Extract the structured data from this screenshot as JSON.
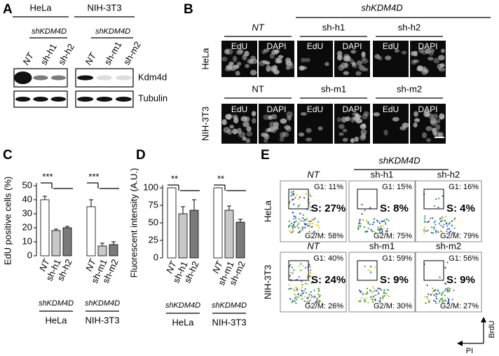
{
  "panel_labels": [
    "A",
    "B",
    "C",
    "D",
    "E"
  ],
  "blot": {
    "cell_lines": [
      {
        "name": "HeLa",
        "treatment": "shKDM4D",
        "lanes": [
          "NT",
          "sh-h1",
          "sh-h2"
        ]
      },
      {
        "name": "NIH-3T3",
        "treatment": "shKDM4D",
        "lanes": [
          "NT",
          "sh-m1",
          "sh-m2"
        ]
      }
    ],
    "proteins": [
      "Kdm4d",
      "Tubulin"
    ]
  },
  "imaging": {
    "treatment": "shKDM4D",
    "channels": [
      "EdU",
      "DAPI"
    ],
    "rows": [
      {
        "cell_line": "HeLa",
        "conditions": [
          "NT",
          "sh-h1",
          "sh-h2"
        ]
      },
      {
        "cell_line": "NIH-3T3",
        "conditions": [
          "NT",
          "sh-m1",
          "sh-m2"
        ]
      }
    ]
  },
  "chart_data": [
    {
      "type": "bar",
      "y_label": "EdU positive cells (%)",
      "categories": [
        "NT",
        "sh-h1",
        "sh-h2",
        "NT",
        "sh-m1",
        "sh-m2"
      ],
      "values": [
        40,
        18,
        20,
        35,
        7,
        8
      ],
      "errors": [
        2.5,
        1,
        1,
        5,
        2,
        2
      ],
      "colors": [
        "#ffffff",
        "#c8c8c8",
        "#7a7a7a",
        "#ffffff",
        "#c8c8c8",
        "#7a7a7a"
      ],
      "ylim": [
        0,
        50
      ],
      "yticks": [
        0,
        10,
        20,
        30,
        40,
        50
      ],
      "groups": [
        {
          "subtitle": "shKDM4D",
          "name": "HeLa",
          "significance": "***"
        },
        {
          "subtitle": "shKDM4D",
          "name": "NIH-3T3",
          "significance": "***"
        }
      ]
    },
    {
      "type": "bar",
      "y_label": "Fluorescent intensity (A.U.)",
      "categories": [
        "NT",
        "sh-h1",
        "sh-h2",
        "NT",
        "sh-m1",
        "sh-m2"
      ],
      "values": [
        100,
        63,
        68,
        100,
        68,
        51
      ],
      "errors": [
        0,
        10,
        15,
        0,
        6,
        4
      ],
      "colors": [
        "#ffffff",
        "#c8c8c8",
        "#7a7a7a",
        "#ffffff",
        "#c8c8c8",
        "#7a7a7a"
      ],
      "ylim": [
        0,
        100
      ],
      "yticks": [
        0,
        25,
        50,
        75,
        100
      ],
      "groups": [
        {
          "subtitle": "shKDM4D",
          "name": "HeLa",
          "significance": "**"
        },
        {
          "subtitle": "shKDM4D",
          "name": "NIH-3T3",
          "significance": "**"
        }
      ]
    }
  ],
  "flow": {
    "treatment": "shKDM4D",
    "y_axis": "BrdU",
    "x_axis": "PI",
    "rows": [
      {
        "cell_line": "HeLa",
        "conditions": [
          {
            "name": "NT",
            "g1": "G1: 11%",
            "s": "S: 27%",
            "g2m": "G2/M: 58%"
          },
          {
            "name": "sh-h1",
            "g1": "G1: 15%",
            "s": "S: 8%",
            "g2m": "G2/M: 75%"
          },
          {
            "name": "sh-h2",
            "g1": "G1: 16%",
            "s": "S: 4%",
            "g2m": "G2/M: 79%"
          }
        ]
      },
      {
        "cell_line": "NIH-3T3",
        "conditions": [
          {
            "name": "NT",
            "g1": "G1: 40%",
            "s": "S: 24%",
            "g2m": "G2/M: 26%"
          },
          {
            "name": "sh-m1",
            "g1": "G1: 59%",
            "s": "S: 9%",
            "g2m": "G2/M: 30%"
          },
          {
            "name": "sh-m2",
            "g1": "G1: 56%",
            "s": "S: 9%",
            "g2m": "G2/M: 27%"
          }
        ]
      }
    ]
  }
}
